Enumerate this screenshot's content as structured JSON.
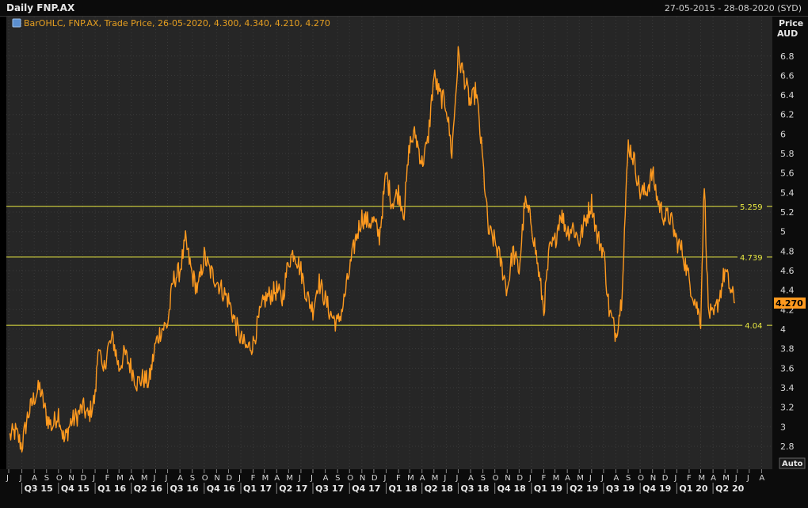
{
  "header": {
    "title": "Daily FNP.AX",
    "date_range": "27-05-2015 - 28-08-2020 (SYD)"
  },
  "legend": {
    "text": "BarOHLC, FNP.AX, Trade Price, 26-05-2020, 4.300, 4.340, 4.210, 4.270",
    "icon": "chart-series-icon"
  },
  "axis": {
    "price_label": "Price",
    "currency_label": "AUD",
    "auto_button": "Auto"
  },
  "colors": {
    "series": "#ff9a1f",
    "hline": "#e8e840",
    "grid": "#3a3a3a",
    "background": "#262626"
  },
  "chart_data": {
    "type": "line",
    "series": [
      {
        "name": "FNP.AX",
        "x": [
          "2015-06-01",
          "2015-06-15",
          "2015-07-01",
          "2015-07-15",
          "2015-08-01",
          "2015-08-15",
          "2015-09-01",
          "2015-09-15",
          "2015-10-01",
          "2015-10-15",
          "2015-11-01",
          "2015-11-15",
          "2015-12-01",
          "2015-12-15",
          "2016-01-01",
          "2016-01-10",
          "2016-01-20",
          "2016-02-01",
          "2016-02-15",
          "2016-03-01",
          "2016-03-15",
          "2016-04-01",
          "2016-04-15",
          "2016-05-01",
          "2016-05-15",
          "2016-06-01",
          "2016-06-15",
          "2016-07-01",
          "2016-07-15",
          "2016-08-01",
          "2016-08-15",
          "2016-09-01",
          "2016-09-15",
          "2016-10-01",
          "2016-10-15",
          "2016-11-01",
          "2016-11-15",
          "2016-12-01",
          "2016-12-15",
          "2017-01-01",
          "2017-01-15",
          "2017-02-01",
          "2017-02-15",
          "2017-03-01",
          "2017-03-15",
          "2017-04-01",
          "2017-04-15",
          "2017-05-01",
          "2017-05-15",
          "2017-06-01",
          "2017-06-15",
          "2017-07-01",
          "2017-07-15",
          "2017-08-01",
          "2017-08-15",
          "2017-09-01",
          "2017-09-15",
          "2017-10-01",
          "2017-10-15",
          "2017-11-01",
          "2017-11-15",
          "2017-12-01",
          "2017-12-15",
          "2018-01-01",
          "2018-01-15",
          "2018-02-01",
          "2018-02-15",
          "2018-03-01",
          "2018-03-15",
          "2018-04-01",
          "2018-04-15",
          "2018-05-01",
          "2018-05-15",
          "2018-06-01",
          "2018-06-15",
          "2018-07-01",
          "2018-07-15",
          "2018-08-01",
          "2018-08-15",
          "2018-09-01",
          "2018-09-15",
          "2018-10-01",
          "2018-10-15",
          "2018-11-01",
          "2018-11-15",
          "2018-12-01",
          "2018-12-15",
          "2019-01-01",
          "2019-01-15",
          "2019-02-01",
          "2019-02-15",
          "2019-03-01",
          "2019-03-15",
          "2019-04-01",
          "2019-04-15",
          "2019-05-01",
          "2019-05-15",
          "2019-06-01",
          "2019-06-15",
          "2019-07-01",
          "2019-07-15",
          "2019-08-01",
          "2019-08-15",
          "2019-09-01",
          "2019-09-15",
          "2019-10-01",
          "2019-10-15",
          "2019-11-01",
          "2019-11-15",
          "2019-12-01",
          "2019-12-15",
          "2020-01-01",
          "2020-01-15",
          "2020-02-01",
          "2020-02-15",
          "2020-03-01",
          "2020-03-10",
          "2020-03-20",
          "2020-04-01",
          "2020-04-15",
          "2020-05-01",
          "2020-05-15",
          "2020-05-26"
        ],
        "values": [
          2.9,
          2.95,
          2.8,
          3.1,
          3.3,
          3.4,
          3.1,
          3.0,
          3.15,
          2.85,
          3.05,
          3.1,
          3.2,
          3.1,
          3.3,
          3.9,
          3.5,
          3.8,
          3.9,
          3.6,
          3.75,
          3.6,
          3.45,
          3.5,
          3.45,
          3.85,
          4.0,
          4.05,
          4.5,
          4.6,
          4.9,
          4.55,
          4.4,
          4.75,
          4.6,
          4.5,
          4.4,
          4.3,
          4.1,
          3.9,
          3.8,
          3.85,
          4.1,
          4.3,
          4.35,
          4.4,
          4.3,
          4.7,
          4.8,
          4.6,
          4.35,
          4.2,
          4.5,
          4.3,
          4.15,
          4.05,
          4.25,
          4.6,
          4.9,
          5.15,
          5.1,
          5.1,
          4.95,
          5.6,
          5.3,
          5.4,
          5.2,
          5.9,
          6.0,
          5.7,
          5.9,
          6.6,
          6.4,
          6.3,
          5.8,
          6.8,
          6.6,
          6.3,
          6.45,
          5.7,
          5.0,
          4.9,
          4.7,
          4.4,
          4.8,
          4.6,
          5.3,
          5.1,
          4.7,
          4.2,
          4.8,
          4.9,
          5.2,
          5.0,
          5.05,
          4.9,
          5.1,
          5.3,
          4.95,
          4.8,
          4.2,
          3.95,
          4.3,
          5.9,
          5.75,
          5.4,
          5.4,
          5.6,
          5.3,
          5.15,
          5.15,
          4.9,
          4.8,
          4.5,
          4.3,
          4.1,
          5.5,
          4.2,
          4.1,
          4.3,
          4.6,
          4.4,
          4.27
        ]
      }
    ],
    "ylim": [
      2.6,
      7.0
    ],
    "y_ticks": [
      "2.8",
      "3",
      "3.2",
      "3.4",
      "3.6",
      "3.8",
      "4",
      "4.2",
      "4.4",
      "4.6",
      "4.8",
      "5",
      "5.2",
      "5.4",
      "5.6",
      "5.8",
      "6",
      "6.2",
      "6.4",
      "6.6",
      "6.8"
    ],
    "hlines": [
      {
        "value": 5.259,
        "label": "5.259"
      },
      {
        "value": 4.739,
        "label": "4.739"
      },
      {
        "value": 4.04,
        "label": "4.04"
      }
    ],
    "last_price_label": "4.270",
    "x_month_labels": [
      "J",
      "J",
      "A",
      "S",
      "O",
      "N",
      "D",
      "J",
      "F",
      "M",
      "A",
      "M",
      "J",
      "J",
      "A",
      "S",
      "O",
      "N",
      "D",
      "J",
      "F",
      "M",
      "A",
      "M",
      "J",
      "J",
      "A",
      "S",
      "O",
      "N",
      "D",
      "J",
      "F",
      "M",
      "A",
      "M",
      "J",
      "J",
      "A",
      "S",
      "O",
      "N",
      "D",
      "J",
      "F",
      "M",
      "A",
      "M",
      "J",
      "J",
      "A",
      "S",
      "O",
      "N",
      "D",
      "J",
      "F",
      "M",
      "A",
      "M",
      "J",
      "J",
      "A"
    ],
    "x_quarter_labels": [
      "Q3 15",
      "Q4 15",
      "Q1 16",
      "Q2 16",
      "Q3 16",
      "Q4 16",
      "Q1 17",
      "Q2 17",
      "Q3 17",
      "Q4 17",
      "Q1 18",
      "Q2 18",
      "Q3 18",
      "Q4 18",
      "Q1 19",
      "Q2 19",
      "Q3 19",
      "Q4 19",
      "Q1 20",
      "Q2 20"
    ],
    "x_start": "2015-05-27",
    "x_end": "2020-08-28",
    "grid": true
  }
}
